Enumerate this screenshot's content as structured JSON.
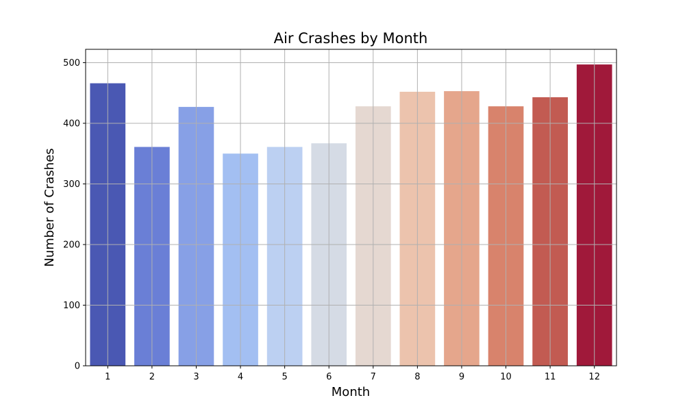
{
  "chart_data": {
    "type": "bar",
    "title": "Air Crashes by Month",
    "xlabel": "Month",
    "ylabel": "Number of Crashes",
    "categories": [
      "1",
      "2",
      "3",
      "4",
      "5",
      "6",
      "7",
      "8",
      "9",
      "10",
      "11",
      "12"
    ],
    "values": [
      466,
      361,
      427,
      350,
      361,
      367,
      428,
      452,
      453,
      428,
      443,
      497
    ],
    "colors": [
      "#4a58b3",
      "#6a7fd6",
      "#87a0e6",
      "#a3bff2",
      "#bcd0f2",
      "#d5dbe5",
      "#e5d8d1",
      "#ecc3ad",
      "#e5a68c",
      "#d8836c",
      "#c25b52",
      "#a0193a"
    ],
    "ylim": [
      0,
      522
    ],
    "yticks": [
      "0",
      "100",
      "200",
      "300",
      "400",
      "500"
    ],
    "grid": true
  }
}
